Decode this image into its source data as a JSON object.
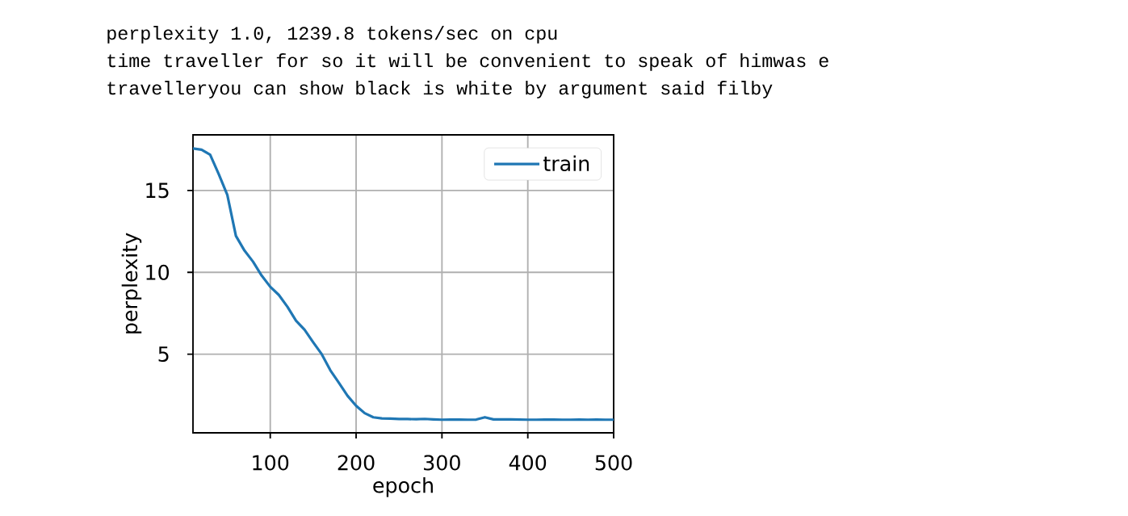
{
  "chart_data": {
    "type": "line",
    "xlabel": "epoch",
    "ylabel": "perplexity",
    "annotations": [
      "perplexity 1.0, 1239.8 tokens/sec on cpu",
      "time traveller for so it will be convenient to speak of himwas e",
      "travelleryou can show black is white by argument said filby"
    ],
    "x": [
      10,
      20,
      30,
      40,
      50,
      60,
      70,
      80,
      90,
      100,
      110,
      120,
      130,
      140,
      150,
      160,
      170,
      180,
      190,
      200,
      210,
      220,
      230,
      240,
      250,
      260,
      270,
      280,
      290,
      300,
      310,
      320,
      330,
      340,
      350,
      360,
      370,
      380,
      390,
      400,
      410,
      420,
      430,
      440,
      450,
      460,
      470,
      480,
      490,
      500
    ],
    "series": [
      {
        "name": "train",
        "color": "#1f77b4",
        "values": [
          17.57,
          17.49,
          17.19,
          16.0,
          14.73,
          12.23,
          11.33,
          10.65,
          9.8,
          9.12,
          8.62,
          7.9,
          7.05,
          6.49,
          5.73,
          5.0,
          4.02,
          3.25,
          2.46,
          1.85,
          1.4,
          1.15,
          1.08,
          1.07,
          1.04,
          1.04,
          1.03,
          1.05,
          1.02,
          1.0,
          1.01,
          1.01,
          1.0,
          1.01,
          1.15,
          1.02,
          1.02,
          1.02,
          1.01,
          1.0,
          1.0,
          1.01,
          1.01,
          1.0,
          1.0,
          1.01,
          1.0,
          1.01,
          1.0,
          1.0
        ]
      }
    ],
    "xlim": [
      10,
      500
    ],
    "ylim": [
      0.2,
      18.4
    ],
    "xticks": [
      100,
      200,
      300,
      400,
      500
    ],
    "yticks": [
      5,
      10,
      15
    ],
    "grid": true,
    "legend": "top right"
  }
}
